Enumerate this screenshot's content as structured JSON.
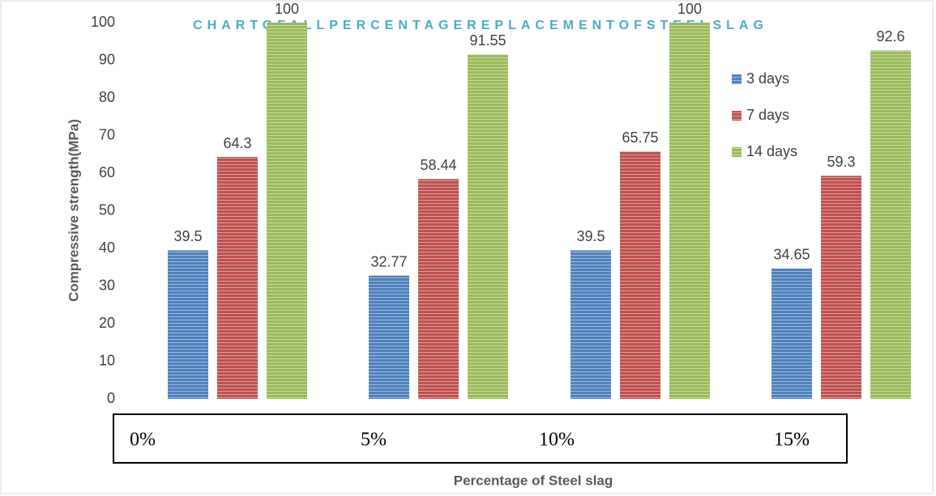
{
  "chart_data": {
    "type": "bar",
    "title": "CHARTOFALLPERCENTAGEREPLACEMENTOFSTEELSLAG",
    "x_label": "Percentage of Steel slag",
    "y_label": "Compressive strength(MPa)",
    "categories": [
      "0%",
      "5%",
      "10%",
      "15%"
    ],
    "series": [
      {
        "name": "3 days",
        "color": "#4f81bd",
        "values": [
          39.5,
          32.77,
          39.5,
          34.65
        ]
      },
      {
        "name": "7 days",
        "color": "#c0504d",
        "values": [
          64.3,
          58.44,
          65.75,
          59.3
        ]
      },
      {
        "name": "14 days",
        "color": "#9bbb59",
        "values": [
          100,
          91.55,
          100,
          92.6
        ]
      }
    ],
    "ylim": [
      0,
      100
    ],
    "yticks": [
      0,
      10,
      20,
      30,
      40,
      50,
      60,
      70,
      80,
      90,
      100
    ],
    "grid": false,
    "legend": "right"
  }
}
